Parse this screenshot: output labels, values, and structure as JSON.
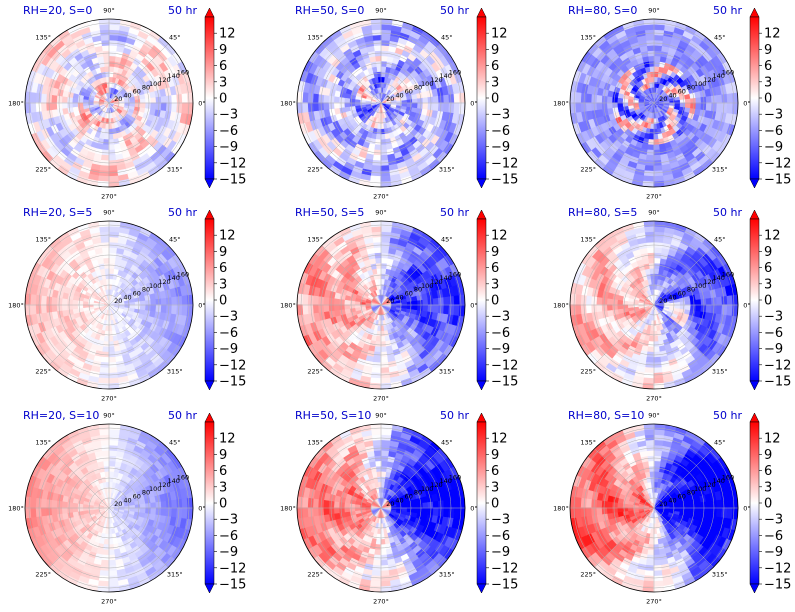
{
  "chart_data": {
    "type": "heatmap",
    "layout": "3x3 polar panels",
    "colormap": "bwr",
    "colorbar": {
      "min": -15,
      "max": 15,
      "ticks": [
        12,
        9,
        6,
        3,
        0,
        -3,
        -6,
        -9,
        -12,
        -15
      ],
      "tick_labels": [
        "12",
        "9",
        "6",
        "3",
        "0",
        "−3",
        "−6",
        "−9",
        "−12",
        "−15"
      ],
      "extend": "both"
    },
    "angle_labels": [
      "0°",
      "45°",
      "90°",
      "135°",
      "180°",
      "225°",
      "270°",
      "315°"
    ],
    "radial_labels": [
      "20",
      "40",
      "60",
      "80",
      "100",
      "120",
      "140",
      "160"
    ],
    "panels": [
      {
        "title": "RH=20, S=0",
        "time": "50 hr",
        "rh": 20,
        "shear": 0
      },
      {
        "title": "RH=50, S=0",
        "time": "50 hr",
        "rh": 50,
        "shear": 0
      },
      {
        "title": "RH=80, S=0",
        "time": "50 hr",
        "rh": 80,
        "shear": 0
      },
      {
        "title": "RH=20, S=5",
        "time": "50 hr",
        "rh": 20,
        "shear": 5
      },
      {
        "title": "RH=50, S=5",
        "time": "50 hr",
        "rh": 50,
        "shear": 5
      },
      {
        "title": "RH=80, S=5",
        "time": "50 hr",
        "rh": 80,
        "shear": 5
      },
      {
        "title": "RH=20, S=10",
        "time": "50 hr",
        "rh": 20,
        "shear": 10
      },
      {
        "title": "RH=50, S=10",
        "time": "50 hr",
        "rh": 50,
        "shear": 10
      },
      {
        "title": "RH=80, S=10",
        "time": "50 hr",
        "rh": 80,
        "shear": 10
      }
    ]
  }
}
